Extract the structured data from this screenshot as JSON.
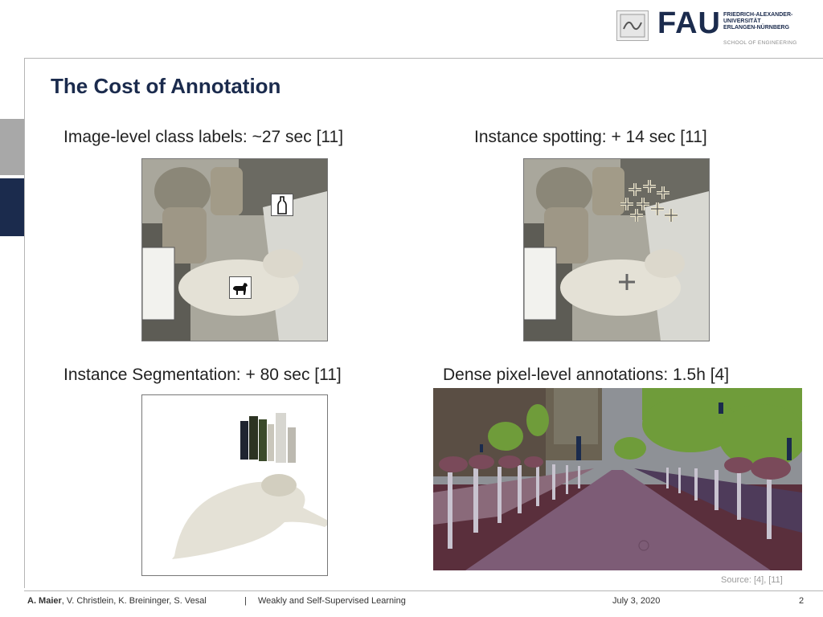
{
  "header": {
    "logo_text": "FAU",
    "university_lines": [
      "FRIEDRICH-ALEXANDER-",
      "UNIVERSITÄT",
      "ERLANGEN-NÜRNBERG"
    ],
    "school": "SCHOOL OF ENGINEERING"
  },
  "slide": {
    "title": "The Cost of Annotation",
    "panels": [
      {
        "label": "Image-level class labels: ~27 sec [11]"
      },
      {
        "label": "Instance spotting: + 14 sec [11]"
      },
      {
        "label": "Instance Segmentation: + 80 sec [11]"
      },
      {
        "label": "Dense pixel-level annotations: 1.5h [4]"
      }
    ],
    "source": "Source: [4], [11]"
  },
  "footer": {
    "author_bold": "A. Maier",
    "authors_rest": ", V. Christlein, K. Breininger, S. Vesal",
    "separator": "|",
    "course": "Weakly and Self-Supervised Learning",
    "date": "July 3, 2020",
    "page": "2"
  },
  "colors": {
    "navy": "#1b2b4d",
    "gray_bar": "#a8a8a8",
    "road": "#7d5c76",
    "sidewalk": "#5a2f3c",
    "vegetation": "#6f9c3a",
    "building": "#5f5a4c",
    "sky": "#8e9196"
  }
}
